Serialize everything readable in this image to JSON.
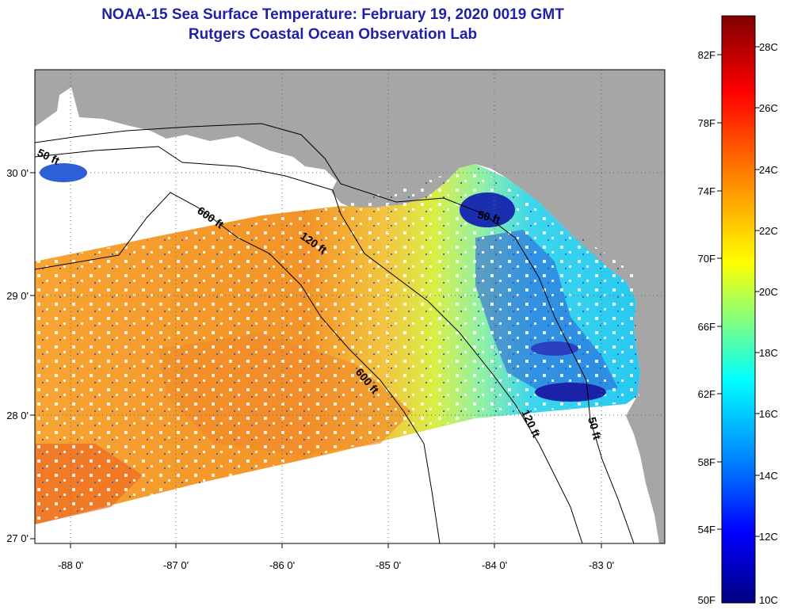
{
  "header": {
    "title": "NOAA-15 Sea Surface Temperature:  February 19, 2020 0019 GMT",
    "subtitle": "Rutgers Coastal Ocean Observation Lab"
  },
  "map": {
    "lat_range": [
      27.0,
      30.8
    ],
    "lon_range": [
      -88.3,
      -82.5
    ],
    "lat_ticks": [
      "30 0'",
      "29 0'",
      "28 0'",
      "27 0'"
    ],
    "lon_ticks": [
      "-88 0'",
      "-87 0'",
      "-86 0'",
      "-85 0'",
      "-84 0'",
      "-83 0'"
    ],
    "land_color": "#a6a6a6",
    "no_data_color": "#ffffff",
    "grid": "dotted",
    "contour_labels": [
      {
        "id": "50ft-west",
        "text": "50 ft"
      },
      {
        "id": "600ft-north",
        "text": "600 ft"
      },
      {
        "id": "120ft-north",
        "text": "120 ft"
      },
      {
        "id": "50ft-bigbend",
        "text": "50 ft"
      },
      {
        "id": "600ft-south",
        "text": "600 ft"
      },
      {
        "id": "120ft-south",
        "text": "120 ft"
      },
      {
        "id": "50ft-south",
        "text": "50 ft"
      }
    ]
  },
  "colorbar": {
    "fahrenheit": [
      "82F",
      "78F",
      "74F",
      "70F",
      "66F",
      "62F",
      "58F",
      "54F",
      "50F"
    ],
    "celsius": [
      "28C",
      "26C",
      "24C",
      "22C",
      "20C",
      "18C",
      "16C",
      "14C",
      "12C",
      "10C"
    ],
    "colors": [
      "#800000",
      "#ff0000",
      "#ff8000",
      "#ffff00",
      "#80ff80",
      "#00ffff",
      "#0080ff",
      "#0000ff",
      "#000080"
    ]
  }
}
